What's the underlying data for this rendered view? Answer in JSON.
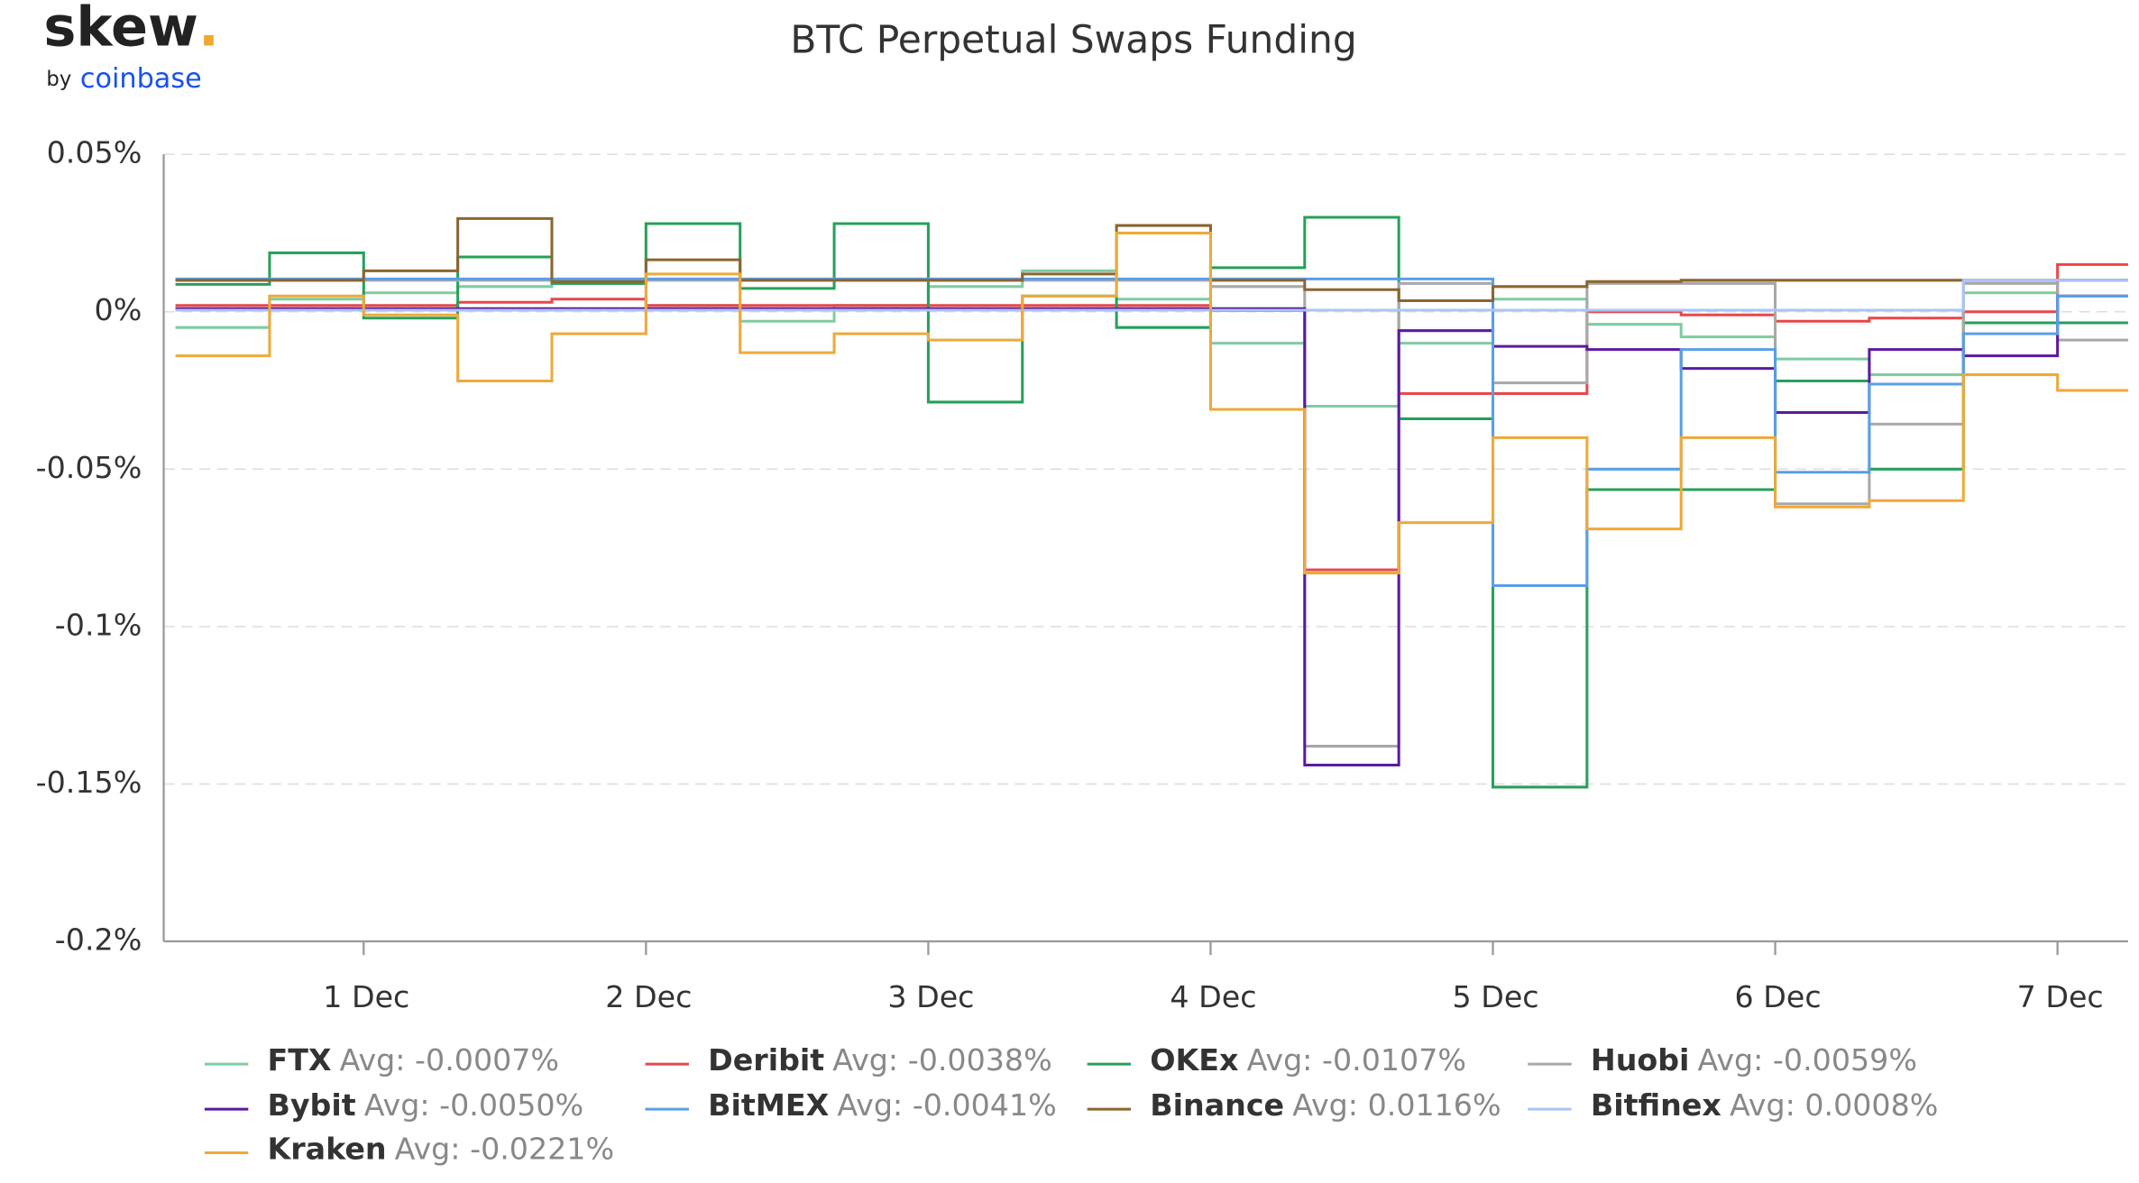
{
  "logo": {
    "word": "skew",
    "dot": ".",
    "by": "by",
    "brand": "coinbase"
  },
  "chart_data": {
    "type": "step",
    "title": "BTC Perpetual Swaps Funding",
    "x": [
      "30 Nov 08:00",
      "30 Nov 16:00",
      "1 Dec 00:00",
      "1 Dec 08:00",
      "1 Dec 16:00",
      "2 Dec 00:00",
      "2 Dec 08:00",
      "2 Dec 16:00",
      "3 Dec 00:00",
      "3 Dec 08:00",
      "3 Dec 16:00",
      "4 Dec 00:00",
      "4 Dec 08:00",
      "4 Dec 16:00",
      "5 Dec 00:00",
      "5 Dec 08:00",
      "5 Dec 16:00",
      "6 Dec 00:00",
      "6 Dec 08:00",
      "6 Dec 16:00",
      "7 Dec 00:00"
    ],
    "xlim": [
      "30 Nov 07:00",
      "7 Dec 06:00"
    ],
    "xticks": [
      {
        "value": "1 Dec 00:00",
        "label": "1 Dec"
      },
      {
        "value": "2 Dec 00:00",
        "label": "2 Dec"
      },
      {
        "value": "3 Dec 00:00",
        "label": "3 Dec"
      },
      {
        "value": "4 Dec 00:00",
        "label": "4 Dec"
      },
      {
        "value": "5 Dec 00:00",
        "label": "5 Dec"
      },
      {
        "value": "6 Dec 00:00",
        "label": "6 Dec"
      },
      {
        "value": "7 Dec 00:00",
        "label": "7 Dec"
      }
    ],
    "ylim": [
      -0.2,
      0.05
    ],
    "yticks": [
      {
        "value": 0.05,
        "label": "0.05%"
      },
      {
        "value": 0,
        "label": "0%"
      },
      {
        "value": -0.05,
        "label": "-0.05%"
      },
      {
        "value": -0.1,
        "label": "-0.1%"
      },
      {
        "value": -0.15,
        "label": "-0.15%"
      },
      {
        "value": -0.2,
        "label": "-0.2%"
      }
    ],
    "grid": true,
    "series": [
      {
        "name": "FTX",
        "legend_text": "Avg: -0.0007%",
        "color": "#7fcca0",
        "values": [
          -0.005,
          0.004,
          0.006,
          0.008,
          0.009,
          0.002,
          -0.003,
          0.002,
          0.008,
          0.013,
          0.004,
          -0.01,
          -0.03,
          -0.01,
          0.004,
          -0.004,
          -0.008,
          -0.015,
          -0.02,
          0.006,
          0.01
        ]
      },
      {
        "name": "Deribit",
        "legend_text": "Avg: -0.0038%",
        "color": "#e8474b",
        "values": [
          0.002,
          0.002,
          0.002,
          0.003,
          0.004,
          0.002,
          0.002,
          0.002,
          0.002,
          0.002,
          0.002,
          0.0004,
          -0.082,
          -0.026,
          -0.026,
          0,
          -0.001,
          -0.003,
          -0.002,
          0,
          0.015
        ]
      },
      {
        "name": "OKEx",
        "legend_text": "Avg: -0.0107%",
        "color": "#26a05a",
        "values": [
          0.0087,
          0.0187,
          -0.002,
          0.0174,
          0.009,
          0.028,
          0.0074,
          0.028,
          -0.0287,
          0.005,
          -0.005,
          0.014,
          0.03,
          -0.034,
          -0.151,
          -0.0565,
          -0.0565,
          -0.022,
          -0.05,
          -0.0035,
          -0.0035
        ]
      },
      {
        "name": "Huobi",
        "legend_text": "Avg: -0.0059%",
        "color": "#a8a8a8",
        "values": [
          0.01,
          0.01,
          0.01,
          0.01,
          0.01,
          0.01,
          0.01,
          0.01,
          0.01,
          0.01,
          0.01,
          0.008,
          -0.138,
          0.009,
          -0.0226,
          0.009,
          0.009,
          -0.061,
          -0.0357,
          0.009,
          -0.009
        ]
      },
      {
        "name": "Bybit",
        "legend_text": "Avg: -0.0050%",
        "color": "#5b1aa0",
        "values": [
          0.001,
          0.001,
          0.001,
          0.001,
          0.001,
          0.001,
          0.001,
          0.001,
          0.001,
          0.001,
          0.001,
          0.001,
          -0.144,
          -0.006,
          -0.011,
          -0.012,
          -0.018,
          -0.032,
          -0.012,
          -0.014,
          0.005
        ]
      },
      {
        "name": "BitMEX",
        "legend_text": "Avg: -0.0041%",
        "color": "#5a9ee8",
        "values": [
          0.0104,
          0.0104,
          0.0104,
          0.0104,
          0.0104,
          0.0104,
          0.0104,
          0.0104,
          0.0104,
          0.0104,
          0.0104,
          0.0104,
          0.0104,
          0.0104,
          -0.087,
          -0.05,
          -0.012,
          -0.051,
          -0.023,
          -0.007,
          0.005
        ]
      },
      {
        "name": "Binance",
        "legend_text": "Avg: 0.0116%",
        "color": "#8b6530",
        "values": [
          0.01,
          0.01,
          0.013,
          0.0296,
          0.0096,
          0.0165,
          0.01,
          0.01,
          0.01,
          0.012,
          0.0274,
          0.01,
          0.007,
          0.0035,
          0.008,
          0.0096,
          0.01,
          0.01,
          0.01,
          0.01,
          0.01
        ]
      },
      {
        "name": "Bitfinex",
        "legend_text": "Avg: 0.0008%",
        "color": "#aac4f5",
        "values": [
          0.0005,
          0.0005,
          0.0005,
          0.0005,
          0.0005,
          0.0005,
          0.0005,
          0.0005,
          0.0005,
          0.0005,
          0.0005,
          0.0005,
          0.0005,
          0.0005,
          0.0005,
          0.0005,
          0.0005,
          0.0005,
          0.0005,
          0.01,
          0.01
        ]
      },
      {
        "name": "Kraken",
        "legend_text": "Avg: -0.0221%",
        "color": "#eea93a",
        "values": [
          -0.014,
          0.005,
          -0.001,
          -0.022,
          -0.007,
          0.012,
          -0.013,
          -0.007,
          -0.009,
          0.005,
          0.025,
          -0.031,
          -0.083,
          -0.067,
          -0.04,
          -0.069,
          -0.04,
          -0.062,
          -0.06,
          -0.02,
          -0.025
        ]
      }
    ]
  }
}
